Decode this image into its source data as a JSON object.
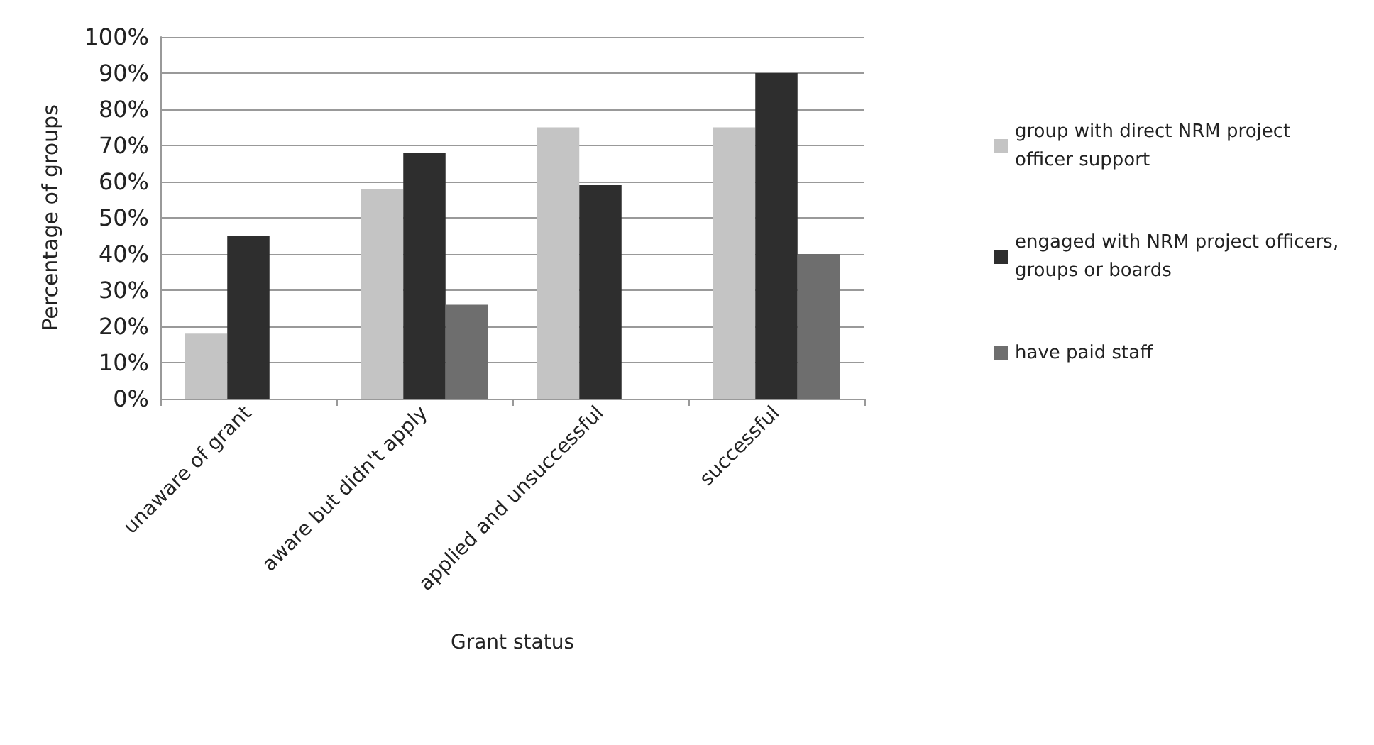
{
  "chart_data": {
    "type": "bar",
    "xlabel": "Grant status",
    "ylabel": "Percentage of groups",
    "categories": [
      "unaware of grant",
      "aware but didn't apply",
      "applied and unsuccessful",
      "successful"
    ],
    "series": [
      {
        "name": "group with direct NRM project officer support",
        "color": "#c4c4c4",
        "values": [
          18,
          58,
          75,
          75
        ]
      },
      {
        "name": "engaged with NRM project officers, groups or boards",
        "color": "#2e2e2e",
        "values": [
          45,
          68,
          59,
          90
        ]
      },
      {
        "name": "have paid staff",
        "color": "#6e6e6e",
        "values": [
          null,
          26,
          null,
          40
        ]
      }
    ],
    "ylim": [
      0,
      100
    ],
    "yticks": [
      {
        "value": 0,
        "label": "0%"
      },
      {
        "value": 10,
        "label": "10%"
      },
      {
        "value": 20,
        "label": "20%"
      },
      {
        "value": 30,
        "label": "30%"
      },
      {
        "value": 40,
        "label": "40%"
      },
      {
        "value": 50,
        "label": "50%"
      },
      {
        "value": 60,
        "label": "60%"
      },
      {
        "value": 70,
        "label": "70%"
      },
      {
        "value": 80,
        "label": "80%"
      },
      {
        "value": 90,
        "label": "90%"
      },
      {
        "value": 100,
        "label": "100%"
      }
    ],
    "grid": "y",
    "legend": "right"
  }
}
